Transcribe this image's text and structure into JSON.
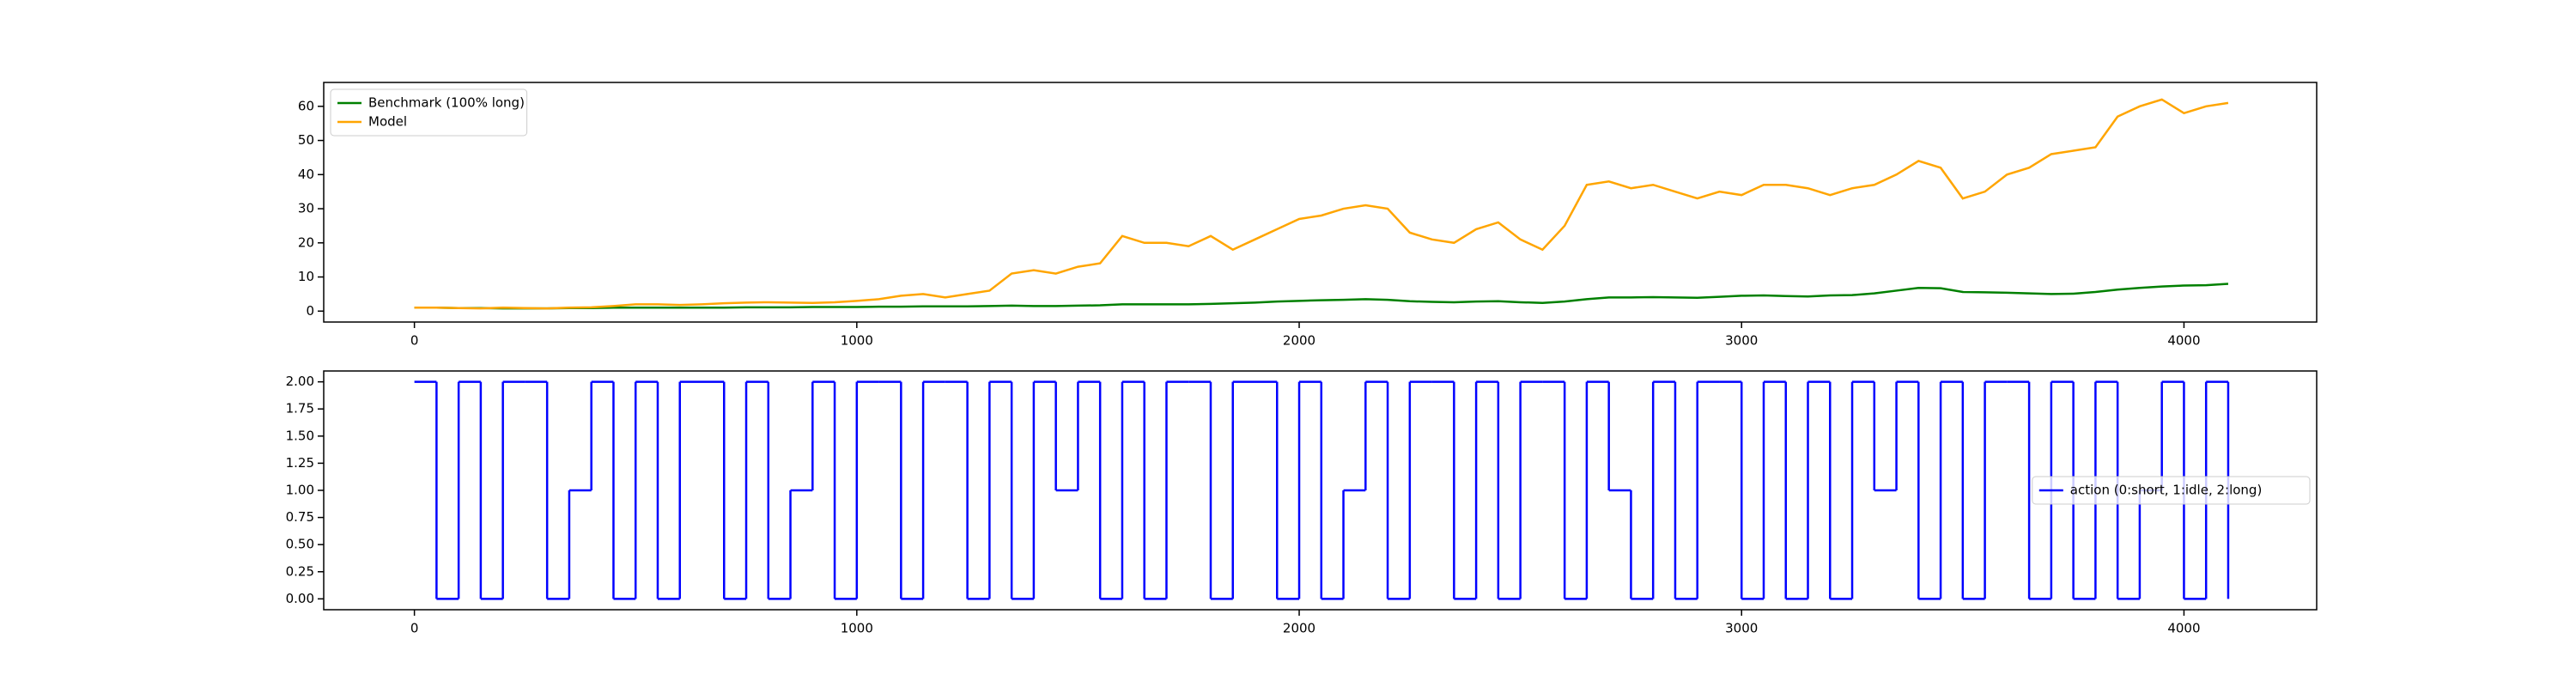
{
  "chart_data": [
    {
      "type": "line",
      "x": [
        0,
        50,
        100,
        150,
        200,
        250,
        300,
        350,
        400,
        450,
        500,
        550,
        600,
        650,
        700,
        750,
        800,
        850,
        900,
        950,
        1000,
        1050,
        1100,
        1150,
        1200,
        1250,
        1300,
        1350,
        1400,
        1450,
        1500,
        1550,
        1600,
        1650,
        1700,
        1750,
        1800,
        1850,
        1900,
        1950,
        2000,
        2050,
        2100,
        2150,
        2200,
        2250,
        2300,
        2350,
        2400,
        2450,
        2500,
        2550,
        2600,
        2650,
        2700,
        2750,
        2800,
        2850,
        2900,
        2950,
        3000,
        3050,
        3100,
        3150,
        3200,
        3250,
        3300,
        3350,
        3400,
        3450,
        3500,
        3550,
        3600,
        3650,
        3700,
        3750,
        3800,
        3850,
        3900,
        3950,
        4000,
        4050,
        4100
      ],
      "series": [
        {
          "name": "Benchmark (100% long)",
          "color": "green",
          "values": [
            1,
            1,
            0.9,
            0.9,
            0.8,
            0.8,
            0.8,
            0.9,
            0.9,
            1,
            1,
            1,
            1,
            1,
            1,
            1.1,
            1.1,
            1.1,
            1.2,
            1.2,
            1.2,
            1.3,
            1.3,
            1.4,
            1.4,
            1.4,
            1.5,
            1.6,
            1.5,
            1.5,
            1.6,
            1.7,
            2,
            2,
            2,
            2,
            2.1,
            2.3,
            2.5,
            2.8,
            3,
            3.2,
            3.3,
            3.5,
            3.3,
            2.9,
            2.7,
            2.6,
            2.8,
            2.9,
            2.6,
            2.4,
            2.8,
            3.5,
            4,
            4,
            4.1,
            4,
            3.9,
            4.2,
            4.5,
            4.6,
            4.4,
            4.3,
            4.6,
            4.7,
            5.2,
            6,
            6.8,
            6.7,
            5.6,
            5.5,
            5.4,
            5.2,
            5,
            5.1,
            5.6,
            6.3,
            6.8,
            7.2,
            7.5,
            7.6,
            8
          ]
        },
        {
          "name": "Model",
          "color": "orange",
          "values": [
            1,
            1,
            0.9,
            0.8,
            1,
            0.9,
            0.8,
            1,
            1.1,
            1.5,
            2,
            2,
            1.8,
            2,
            2.3,
            2.5,
            2.6,
            2.5,
            2.4,
            2.6,
            3,
            3.5,
            4.5,
            5,
            4,
            5,
            6,
            11,
            12,
            11,
            13,
            14,
            22,
            20,
            20,
            19,
            22,
            18,
            21,
            24,
            27,
            28,
            30,
            31,
            30,
            23,
            21,
            20,
            24,
            26,
            21,
            18,
            25,
            37,
            38,
            36,
            37,
            35,
            33,
            35,
            34,
            37,
            37,
            36,
            34,
            36,
            37,
            40,
            44,
            42,
            33,
            35,
            40,
            42,
            46,
            47,
            48,
            57,
            60,
            62,
            58,
            60,
            61
          ]
        }
      ],
      "xlim": [
        -205,
        4300
      ],
      "ylim": [
        -3.2,
        67
      ],
      "xticks": [
        0,
        1000,
        2000,
        3000,
        4000
      ],
      "yticks": [
        0,
        10,
        20,
        30,
        40,
        50,
        60
      ],
      "legend": "upper left"
    },
    {
      "type": "step",
      "x": [
        0,
        50,
        100,
        150,
        200,
        250,
        300,
        350,
        400,
        450,
        500,
        550,
        600,
        650,
        700,
        750,
        800,
        850,
        900,
        950,
        1000,
        1050,
        1100,
        1150,
        1200,
        1250,
        1300,
        1350,
        1400,
        1450,
        1500,
        1550,
        1600,
        1650,
        1700,
        1750,
        1800,
        1850,
        1900,
        1950,
        2000,
        2050,
        2100,
        2150,
        2200,
        2250,
        2300,
        2350,
        2400,
        2450,
        2500,
        2550,
        2600,
        2650,
        2700,
        2750,
        2800,
        2850,
        2900,
        2950,
        3000,
        3050,
        3100,
        3150,
        3200,
        3250,
        3300,
        3350,
        3400,
        3450,
        3500,
        3550,
        3600,
        3650,
        3700,
        3750,
        3800,
        3850,
        3900,
        3950,
        4000,
        4050,
        4100
      ],
      "series": [
        {
          "name": "action (0:short, 1:idle, 2:long)",
          "color": "blue",
          "values": [
            2,
            0,
            2,
            0,
            2,
            2,
            0,
            1,
            2,
            0,
            2,
            0,
            2,
            2,
            0,
            2,
            0,
            1,
            2,
            0,
            2,
            2,
            0,
            2,
            2,
            0,
            2,
            0,
            2,
            1,
            2,
            0,
            2,
            0,
            2,
            2,
            0,
            2,
            2,
            0,
            2,
            0,
            1,
            2,
            0,
            2,
            2,
            0,
            2,
            0,
            2,
            2,
            0,
            2,
            1,
            0,
            2,
            0,
            2,
            2,
            0,
            2,
            0,
            2,
            0,
            2,
            1,
            2,
            0,
            2,
            0,
            2,
            2,
            0,
            2,
            0,
            2,
            0,
            1,
            2,
            0,
            2,
            0
          ]
        }
      ],
      "xlim": [
        -205,
        4300
      ],
      "ylim": [
        -0.1,
        2.1
      ],
      "xticks": [
        0,
        1000,
        2000,
        3000,
        4000
      ],
      "yticks": [
        {
          "value": 0,
          "label": "0.00"
        },
        {
          "value": 0.25,
          "label": "0.25"
        },
        {
          "value": 0.5,
          "label": "0.50"
        },
        {
          "value": 0.75,
          "label": "0.75"
        },
        {
          "value": 1,
          "label": "1.00"
        },
        {
          "value": 1.25,
          "label": "1.25"
        },
        {
          "value": 1.5,
          "label": "1.50"
        },
        {
          "value": 1.75,
          "label": "1.75"
        },
        {
          "value": 2,
          "label": "2.00"
        }
      ],
      "legend": "center right"
    }
  ]
}
